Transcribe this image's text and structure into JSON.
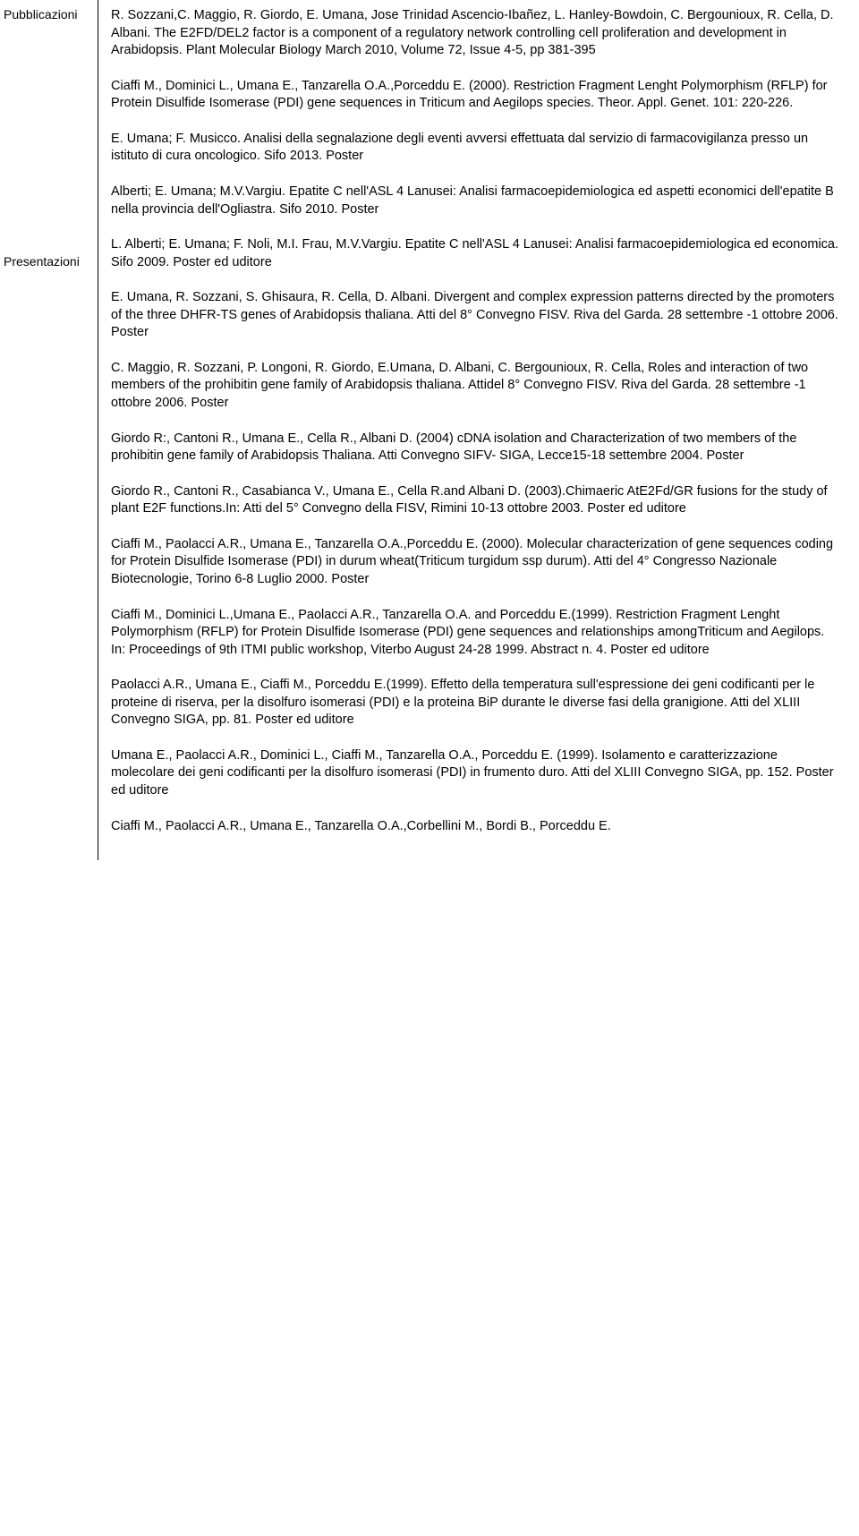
{
  "sidebar": {
    "labels": [
      "Pubblicazioni",
      "Presentazioni"
    ]
  },
  "entries": [
    "R. Sozzani,C. Maggio, R. Giordo, E. Umana, Jose Trinidad Ascencio-Ibañez, L. Hanley-Bowdoin, C. Bergounioux, R. Cella, D. Albani. The E2FD/DEL2 factor is a component of a regulatory network controlling cell proliferation and development in Arabidopsis. Plant Molecular Biology March 2010, Volume 72, Issue 4-5, pp 381-395",
    "Ciaffi M., Dominici L., Umana E., Tanzarella O.A.,Porceddu E. (2000). Restriction Fragment Lenght Polymorphism (RFLP) for Protein Disulfide Isomerase (PDI) gene sequences in Triticum and Aegilops species. Theor. Appl. Genet. 101: 220-226.",
    "E. Umana; F. Musicco. Analisi della segnalazione degli eventi avversi effettuata dal servizio di farmacovigilanza presso un istituto di cura oncologico. Sifo 2013. Poster",
    "Alberti; E. Umana; M.V.Vargiu. Epatite C nell'ASL 4 Lanusei: Analisi farmacoepidemiologica ed aspetti economici dell'epatite B nella provincia dell'Ogliastra. Sifo 2010. Poster",
    "L. Alberti; E. Umana; F. Noli, M.I. Frau, M.V.Vargiu. Epatite C nell'ASL 4 Lanusei: Analisi farmacoepidemiologica ed economica. Sifo 2009. Poster ed uditore",
    "E. Umana, R. Sozzani, S. Ghisaura, R. Cella, D. Albani. Divergent and complex expression patterns directed by the promoters of the three DHFR-TS genes of Arabidopsis thaliana. Atti del 8° Convegno FISV. Riva del Garda. 28 settembre -1 ottobre 2006. Poster",
    "C. Maggio, R. Sozzani, P. Longoni, R. Giordo, E.Umana, D. Albani, C. Bergounioux, R. Cella, Roles and interaction of two members of the prohibitin gene family of Arabidopsis thaliana. Attidel 8° Convegno FISV. Riva del Garda. 28 settembre -1 ottobre 2006. Poster",
    "Giordo R:, Cantoni R., Umana E., Cella R., Albani D. (2004) cDNA isolation and Characterization of two members of the prohibitin gene family of Arabidopsis Thaliana. Atti Convegno SIFV- SIGA, Lecce15-18 settembre 2004. Poster",
    "Giordo R., Cantoni R., Casabianca V., Umana E., Cella R.and Albani D. (2003).Chimaeric AtE2Fd/GR fusions for the study of plant E2F functions.In: Atti del 5° Convegno della FISV, Rimini 10-13 ottobre 2003. Poster ed uditore",
    "Ciaffi M., Paolacci A.R., Umana E., Tanzarella O.A.,Porceddu E. (2000). Molecular characterization of gene sequences coding for Protein Disulfide Isomerase (PDI) in durum wheat(Triticum turgidum ssp durum). Atti del 4° Congresso Nazionale Biotecnologie, Torino 6-8 Luglio 2000. Poster",
    "Ciaffi M., Dominici L.,Umana E., Paolacci A.R., Tanzarella O.A. and Porceddu E.(1999). Restriction Fragment Lenght Polymorphism (RFLP) for Protein Disulfide Isomerase (PDI) gene sequences and relationships amongTriticum and Aegilops. In: Proceedings of 9th ITMI public workshop, Viterbo August 24-28 1999. Abstract n. 4. Poster ed uditore",
    "Paolacci A.R., Umana E., Ciaffi M., Porceddu E.(1999). Effetto della temperatura sull'espressione dei geni codificanti per le proteine di riserva, per la disolfuro isomerasi (PDI) e la proteina BiP durante le diverse fasi della granigione. Atti del XLIII Convegno SIGA, pp. 81. Poster ed uditore",
    "Umana E., Paolacci A.R., Dominici L., Ciaffi M., Tanzarella O.A., Porceddu E. (1999). Isolamento e caratterizzazione molecolare dei geni codificanti per la disolfuro isomerasi (PDI) in frumento duro. Atti del XLIII Convegno SIGA, pp. 152. Poster ed uditore",
    "Ciaffi M., Paolacci A.R., Umana E., Tanzarella O.A.,Corbellini M., Bordi B., Porceddu E."
  ]
}
